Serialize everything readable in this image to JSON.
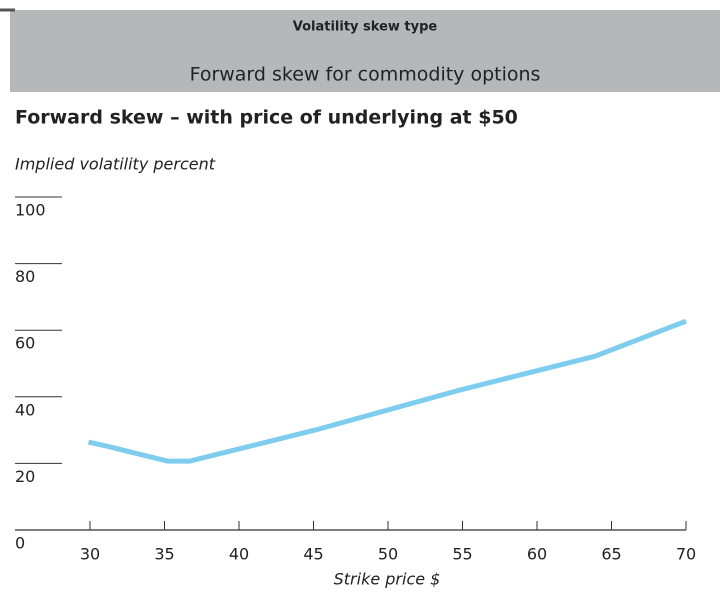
{
  "header": {
    "label": "Volatility skew type",
    "subtitle": "Forward skew for commodity options"
  },
  "chart_data": {
    "type": "line",
    "title": "Forward skew – with price of underlying at $50",
    "y_label": "Implied volatility percent",
    "x_label": "Strike price $",
    "x": [
      29.9,
      31.1,
      35.2,
      36.7,
      45.1,
      54.8,
      63.9,
      70
    ],
    "series": [
      {
        "name": "Forward skew",
        "color": "#7fcdee",
        "values": [
          26.4,
          25.2,
          20.7,
          20.7,
          30,
          42,
          52.2,
          62.7
        ]
      }
    ],
    "xlim": [
      30,
      70
    ],
    "xticks": [
      30,
      35,
      40,
      45,
      50,
      55,
      60,
      65,
      70
    ],
    "ylim": [
      0,
      100
    ],
    "yticks": [
      0,
      20,
      40,
      60,
      80,
      100
    ]
  }
}
